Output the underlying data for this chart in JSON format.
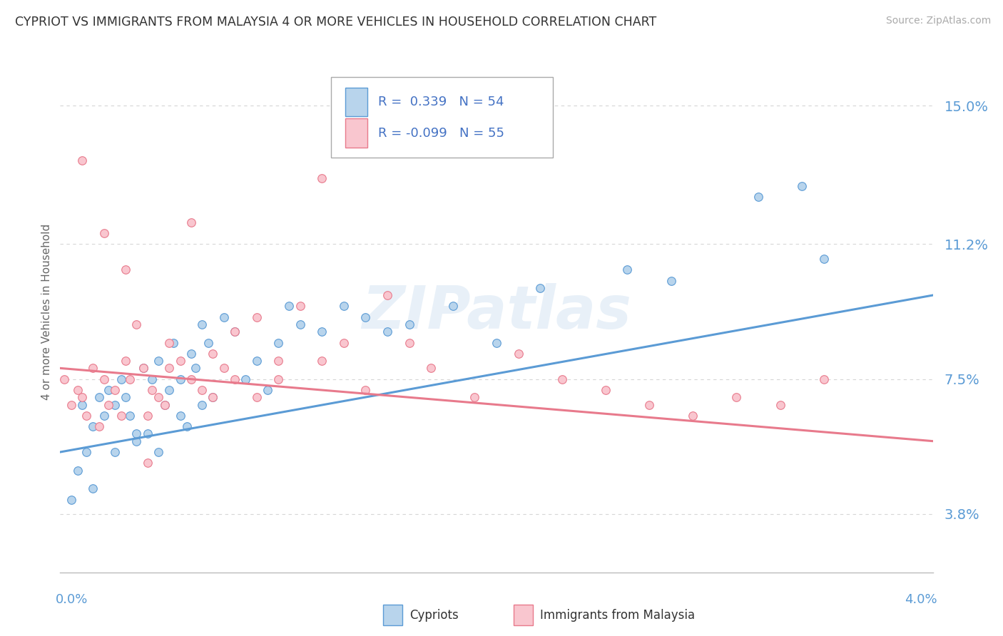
{
  "title": "CYPRIOT VS IMMIGRANTS FROM MALAYSIA 4 OR MORE VEHICLES IN HOUSEHOLD CORRELATION CHART",
  "source": "Source: ZipAtlas.com",
  "ylabel": "4 or more Vehicles in Household",
  "xmin": 0.0,
  "xmax": 4.0,
  "ymin": 2.2,
  "ymax": 16.5,
  "yticks": [
    3.8,
    7.5,
    11.2,
    15.0
  ],
  "ytick_labels": [
    "3.8%",
    "7.5%",
    "11.2%",
    "15.0%"
  ],
  "gridline_color": "#cccccc",
  "watermark": "ZIPatlas",
  "series1_label": "Cypriots",
  "series1_color": "#b8d4ec",
  "series1_line_color": "#5b9bd5",
  "series1_R": 0.339,
  "series1_N": 54,
  "series2_label": "Immigrants from Malaysia",
  "series2_color": "#f9c6cf",
  "series2_line_color": "#e87a8c",
  "series2_R": -0.099,
  "series2_N": 55,
  "legend_text_color_blue": "#4472c4",
  "legend_text_color_dark": "#333333",
  "background_color": "#ffffff",
  "series1_x": [
    0.05,
    0.08,
    0.1,
    0.12,
    0.15,
    0.18,
    0.2,
    0.22,
    0.25,
    0.28,
    0.3,
    0.32,
    0.35,
    0.38,
    0.4,
    0.42,
    0.45,
    0.48,
    0.5,
    0.52,
    0.55,
    0.58,
    0.6,
    0.62,
    0.65,
    0.68,
    0.7,
    0.75,
    0.8,
    0.85,
    0.9,
    0.95,
    1.0,
    1.05,
    1.1,
    1.2,
    1.3,
    1.4,
    1.5,
    1.6,
    1.8,
    2.0,
    2.2,
    2.6,
    2.8,
    3.2,
    3.4,
    3.5,
    0.15,
    0.25,
    0.35,
    0.45,
    0.55,
    0.65
  ],
  "series1_y": [
    4.2,
    5.0,
    6.8,
    5.5,
    6.2,
    7.0,
    6.5,
    7.2,
    6.8,
    7.5,
    7.0,
    6.5,
    5.8,
    7.8,
    6.0,
    7.5,
    8.0,
    6.8,
    7.2,
    8.5,
    7.5,
    6.2,
    8.2,
    7.8,
    9.0,
    8.5,
    7.0,
    9.2,
    8.8,
    7.5,
    8.0,
    7.2,
    8.5,
    9.5,
    9.0,
    8.8,
    9.5,
    9.2,
    8.8,
    9.0,
    9.5,
    8.5,
    10.0,
    10.5,
    10.2,
    12.5,
    12.8,
    10.8,
    4.5,
    5.5,
    6.0,
    5.5,
    6.5,
    6.8
  ],
  "series2_x": [
    0.02,
    0.05,
    0.08,
    0.1,
    0.12,
    0.15,
    0.18,
    0.2,
    0.22,
    0.25,
    0.28,
    0.3,
    0.32,
    0.35,
    0.38,
    0.4,
    0.42,
    0.45,
    0.48,
    0.5,
    0.55,
    0.6,
    0.65,
    0.7,
    0.75,
    0.8,
    0.9,
    1.0,
    1.1,
    1.2,
    1.3,
    1.4,
    1.5,
    1.6,
    1.7,
    1.9,
    2.1,
    2.3,
    2.5,
    2.7,
    2.9,
    3.1,
    3.3,
    3.5,
    0.1,
    0.2,
    0.3,
    0.4,
    0.5,
    0.6,
    0.7,
    0.8,
    0.9,
    1.0,
    1.2
  ],
  "series2_y": [
    7.5,
    6.8,
    7.2,
    7.0,
    6.5,
    7.8,
    6.2,
    7.5,
    6.8,
    7.2,
    6.5,
    8.0,
    7.5,
    9.0,
    7.8,
    6.5,
    7.2,
    7.0,
    6.8,
    8.5,
    8.0,
    7.5,
    7.2,
    8.2,
    7.8,
    7.5,
    7.0,
    7.5,
    9.5,
    8.0,
    8.5,
    7.2,
    9.8,
    8.5,
    7.8,
    7.0,
    8.2,
    7.5,
    7.2,
    6.8,
    6.5,
    7.0,
    6.8,
    7.5,
    13.5,
    11.5,
    10.5,
    5.2,
    7.8,
    11.8,
    7.0,
    8.8,
    9.2,
    8.0,
    13.0
  ]
}
